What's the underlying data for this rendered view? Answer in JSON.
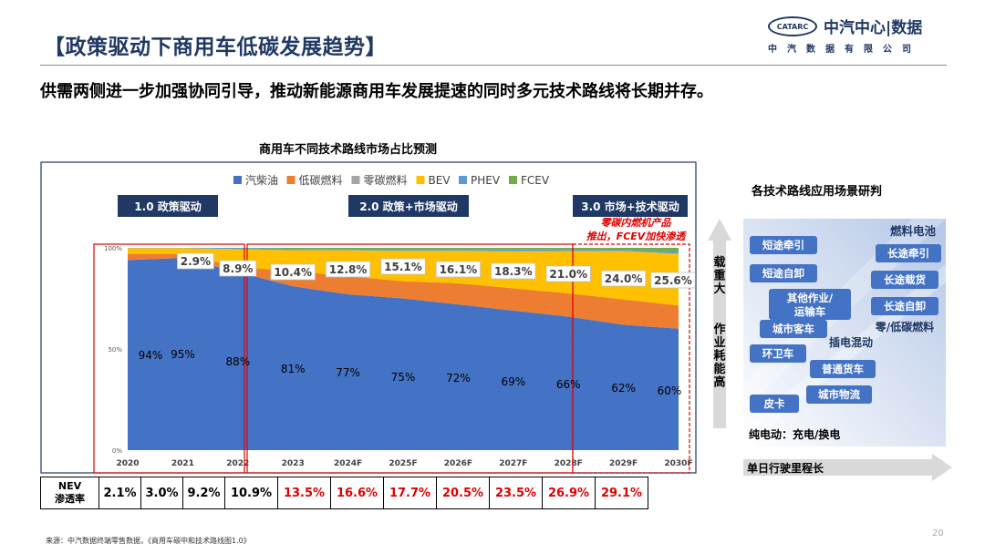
{
  "header": {
    "title": "【政策驱动下商用车低碳发展趋势】",
    "logo_mark": "CATARC",
    "logo_text": "中汽中心|数据",
    "logo_subtext": "中汽数据有限公司",
    "subtitle": "供需两侧进一步加强协同引导，推动新能源商用车发展提速的同时多元技术路线将长期并存。"
  },
  "colors": {
    "diesel": "#4472c4",
    "lowcarbon": "#ed7d31",
    "zerocarbon": "#a5a5a5",
    "bev": "#ffc000",
    "phev": "#5b9bd5",
    "fcev": "#70ad47",
    "red": "#e00000",
    "navy": "#1f3864"
  },
  "chart_data": {
    "type": "area",
    "title": "商用车不同技术路线市场占比预测",
    "categories": [
      "2020",
      "2021",
      "2022",
      "2023",
      "2024F",
      "2025F",
      "2026F",
      "2027F",
      "2028F",
      "2029F",
      "2030F"
    ],
    "y_ticks": [
      "0%",
      "50%",
      "100%"
    ],
    "ylim": [
      0,
      100
    ],
    "legend_position": "top",
    "series": [
      {
        "name": "汽柴油",
        "values": [
          94,
          95,
          88,
          81,
          77,
          75,
          72,
          69,
          66,
          62,
          60
        ]
      },
      {
        "name": "低碳燃料",
        "values": [
          3,
          2,
          2.5,
          7.5,
          9,
          8.5,
          10.5,
          11,
          11.5,
          12.5,
          11.5
        ]
      },
      {
        "name": "零碳燃料",
        "values": [
          0,
          0,
          0,
          0,
          0,
          0,
          0,
          0,
          0,
          0,
          0
        ]
      },
      {
        "name": "BEV",
        "values": [
          2.9,
          2.9,
          8.9,
          10.4,
          12.8,
          15.1,
          16.1,
          18.3,
          21.0,
          24.0,
          25.6
        ]
      },
      {
        "name": "PHEV",
        "values": [
          0.1,
          0.1,
          0.6,
          0.6,
          0.6,
          0.6,
          0.6,
          0.9,
          0.7,
          0.6,
          1.0
        ]
      },
      {
        "name": "FCEV",
        "values": [
          0,
          0,
          0,
          0.5,
          0.6,
          0.8,
          0.8,
          0.8,
          0.8,
          0.9,
          1.9
        ]
      }
    ],
    "diesel_labels": [
      "94%",
      "95%",
      "88%",
      "81%",
      "77%",
      "75%",
      "72%",
      "69%",
      "66%",
      "62%",
      "60%"
    ],
    "bev_labels": [
      "",
      "2.9%",
      "8.9%",
      "10.4%",
      "12.8%",
      "15.1%",
      "16.1%",
      "18.3%",
      "21.0%",
      "24.0%",
      "25.6%"
    ],
    "phases": [
      "1.0 政策驱动",
      "2.0 政策+市场驱动",
      "3.0 市场+技术驱动"
    ],
    "annotation": "零碳内燃机产品推出，FCEV加快渗透"
  },
  "nev_row": {
    "header": "NEV渗透率",
    "values": [
      "2.1%",
      "3.0%",
      "9.2%",
      "10.9%",
      "13.5%",
      "16.6%",
      "17.7%",
      "20.5%",
      "23.5%",
      "26.9%",
      "29.1%"
    ],
    "highlight_from_index": 4
  },
  "scenario_panel": {
    "title": "各技术路线应用场景研判",
    "y_axis_label": "载重大 作业耗能高",
    "x_axis_label": "单日行驶里程长",
    "left_items": [
      "短途牵引",
      "短途自卸",
      "其他作业/运输车",
      "城市客车",
      "环卫车",
      "普通货车",
      "城市物流",
      "皮卡"
    ],
    "right_items": [
      "长途牵引",
      "长途载货",
      "长途自卸"
    ],
    "right_region_label": "燃料电池",
    "middle_labels": [
      "插电混动",
      "零/低碳燃料"
    ],
    "bottom_label": "纯电动：充电/换电"
  },
  "footer": {
    "source": "来源：中汽数据终端零售数据，《商用车碳中和技术路线图1.0》",
    "page_number": "20"
  }
}
